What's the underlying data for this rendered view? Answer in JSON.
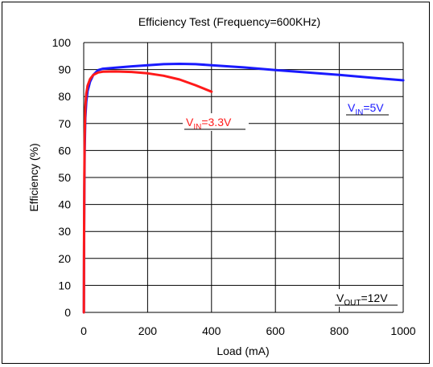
{
  "chart_data": {
    "type": "line",
    "title": "Efficiency Test (Frequency=600KHz)",
    "xlabel": "Load (mA)",
    "ylabel": "Efficiency (%)",
    "xlim": [
      0,
      1000
    ],
    "ylim": [
      0,
      100
    ],
    "x_ticks": [
      0,
      200,
      400,
      600,
      800,
      1000
    ],
    "y_ticks": [
      0,
      10,
      20,
      30,
      40,
      50,
      60,
      70,
      80,
      90,
      100
    ],
    "grid": true,
    "series": [
      {
        "name": "VIN=5V",
        "color": "#1a1aff",
        "x": [
          0.5,
          1,
          2,
          3,
          5,
          8,
          12,
          20,
          30,
          45,
          60,
          100,
          150,
          200,
          250,
          300,
          350,
          400,
          500,
          600,
          700,
          800,
          900,
          1000
        ],
        "y": [
          0,
          20,
          45,
          60,
          72,
          78,
          82,
          85.5,
          88,
          89.8,
          90.3,
          90.7,
          91.2,
          91.6,
          92,
          92.1,
          92,
          91.6,
          90.8,
          89.8,
          88.9,
          88,
          87,
          86
        ]
      },
      {
        "name": "VIN=3.3V",
        "color": "#ff1a1a",
        "x": [
          0.5,
          1,
          2,
          3,
          5,
          8,
          12,
          20,
          30,
          45,
          60,
          100,
          150,
          200,
          250,
          300,
          350,
          400
        ],
        "y": [
          0,
          25,
          50,
          65,
          76,
          81,
          84,
          86.5,
          88,
          88.9,
          89.2,
          89.3,
          89.1,
          88.6,
          87.7,
          86.3,
          84.2,
          81.8
        ]
      }
    ],
    "annotations": [
      {
        "main": "V",
        "sub": "IN",
        "rest": "=3.3V",
        "color": "#ff1a1a"
      },
      {
        "main": "V",
        "sub": "IN",
        "rest": "=5V",
        "color": "#1a1aff"
      },
      {
        "main": "V",
        "sub": "OUT",
        "rest": "=12V",
        "color": "#000000"
      }
    ]
  }
}
